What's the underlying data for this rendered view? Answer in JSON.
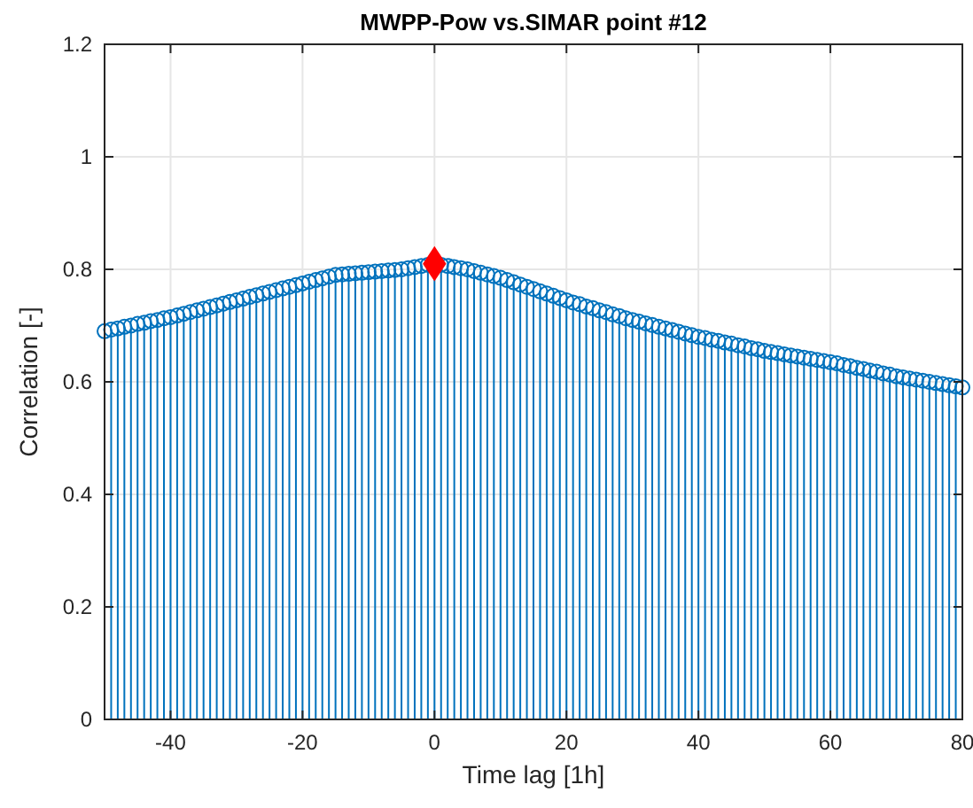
{
  "chart_data": {
    "type": "lollipop",
    "title": "MWPP-Pow vs.SIMAR point #12",
    "xlabel": "Time lag [1h]",
    "ylabel": "Correlation [-]",
    "xlim": [
      -50,
      80
    ],
    "xticks": [
      -40,
      -20,
      0,
      20,
      40,
      60,
      80
    ],
    "ylim": [
      0,
      1.2
    ],
    "yticks": [
      0,
      0.2,
      0.4,
      0.6,
      0.8,
      1,
      1.2
    ],
    "grid": true,
    "series": [
      {
        "color": "#0072bd",
        "marker": "circle",
        "x": [
          -50,
          -49,
          -48,
          -47,
          -46,
          -45,
          -44,
          -43,
          -42,
          -41,
          -40,
          -39,
          -38,
          -37,
          -36,
          -35,
          -34,
          -33,
          -32,
          -31,
          -30,
          -29,
          -28,
          -27,
          -26,
          -25,
          -24,
          -23,
          -22,
          -21,
          -20,
          -19,
          -18,
          -17,
          -16,
          -15,
          -14,
          -13,
          -12,
          -11,
          -10,
          -9,
          -8,
          -7,
          -6,
          -5,
          -4,
          -3,
          -2,
          -1,
          1,
          2,
          3,
          4,
          5,
          6,
          7,
          8,
          9,
          10,
          11,
          12,
          13,
          14,
          15,
          16,
          17,
          18,
          19,
          20,
          21,
          22,
          23,
          24,
          25,
          26,
          27,
          28,
          29,
          30,
          31,
          32,
          33,
          34,
          35,
          36,
          37,
          38,
          39,
          40,
          41,
          42,
          43,
          44,
          45,
          46,
          47,
          48,
          49,
          50,
          51,
          52,
          53,
          54,
          55,
          56,
          57,
          58,
          59,
          60,
          61,
          62,
          63,
          64,
          65,
          66,
          67,
          68,
          69,
          70,
          71,
          72,
          73,
          74,
          75,
          76,
          77,
          78,
          79,
          80
        ],
        "values": [
          0.69,
          0.693,
          0.695,
          0.698,
          0.7,
          0.703,
          0.705,
          0.708,
          0.71,
          0.713,
          0.715,
          0.718,
          0.721,
          0.724,
          0.727,
          0.73,
          0.733,
          0.736,
          0.739,
          0.742,
          0.745,
          0.748,
          0.751,
          0.754,
          0.757,
          0.76,
          0.763,
          0.766,
          0.769,
          0.772,
          0.775,
          0.778,
          0.781,
          0.784,
          0.787,
          0.79,
          0.791,
          0.792,
          0.793,
          0.794,
          0.795,
          0.796,
          0.797,
          0.798,
          0.799,
          0.8,
          0.802,
          0.804,
          0.806,
          0.808,
          0.808,
          0.806,
          0.804,
          0.802,
          0.8,
          0.797,
          0.794,
          0.791,
          0.788,
          0.785,
          0.781,
          0.777,
          0.773,
          0.769,
          0.765,
          0.761,
          0.757,
          0.753,
          0.749,
          0.745,
          0.741,
          0.738,
          0.734,
          0.731,
          0.727,
          0.724,
          0.72,
          0.717,
          0.713,
          0.71,
          0.707,
          0.704,
          0.701,
          0.698,
          0.695,
          0.692,
          0.689,
          0.686,
          0.683,
          0.68,
          0.678,
          0.675,
          0.673,
          0.67,
          0.668,
          0.665,
          0.663,
          0.66,
          0.658,
          0.655,
          0.653,
          0.651,
          0.649,
          0.647,
          0.645,
          0.643,
          0.641,
          0.639,
          0.637,
          0.635,
          0.633,
          0.63,
          0.628,
          0.625,
          0.623,
          0.62,
          0.618,
          0.615,
          0.613,
          0.61,
          0.608,
          0.606,
          0.604,
          0.602,
          0.6,
          0.598,
          0.596,
          0.594,
          0.592,
          0.59
        ]
      },
      {
        "type": "lollipop",
        "color": "#ff0000",
        "marker": "diamond",
        "x": [
          0
        ],
        "values": [
          0.81
        ]
      }
    ]
  }
}
